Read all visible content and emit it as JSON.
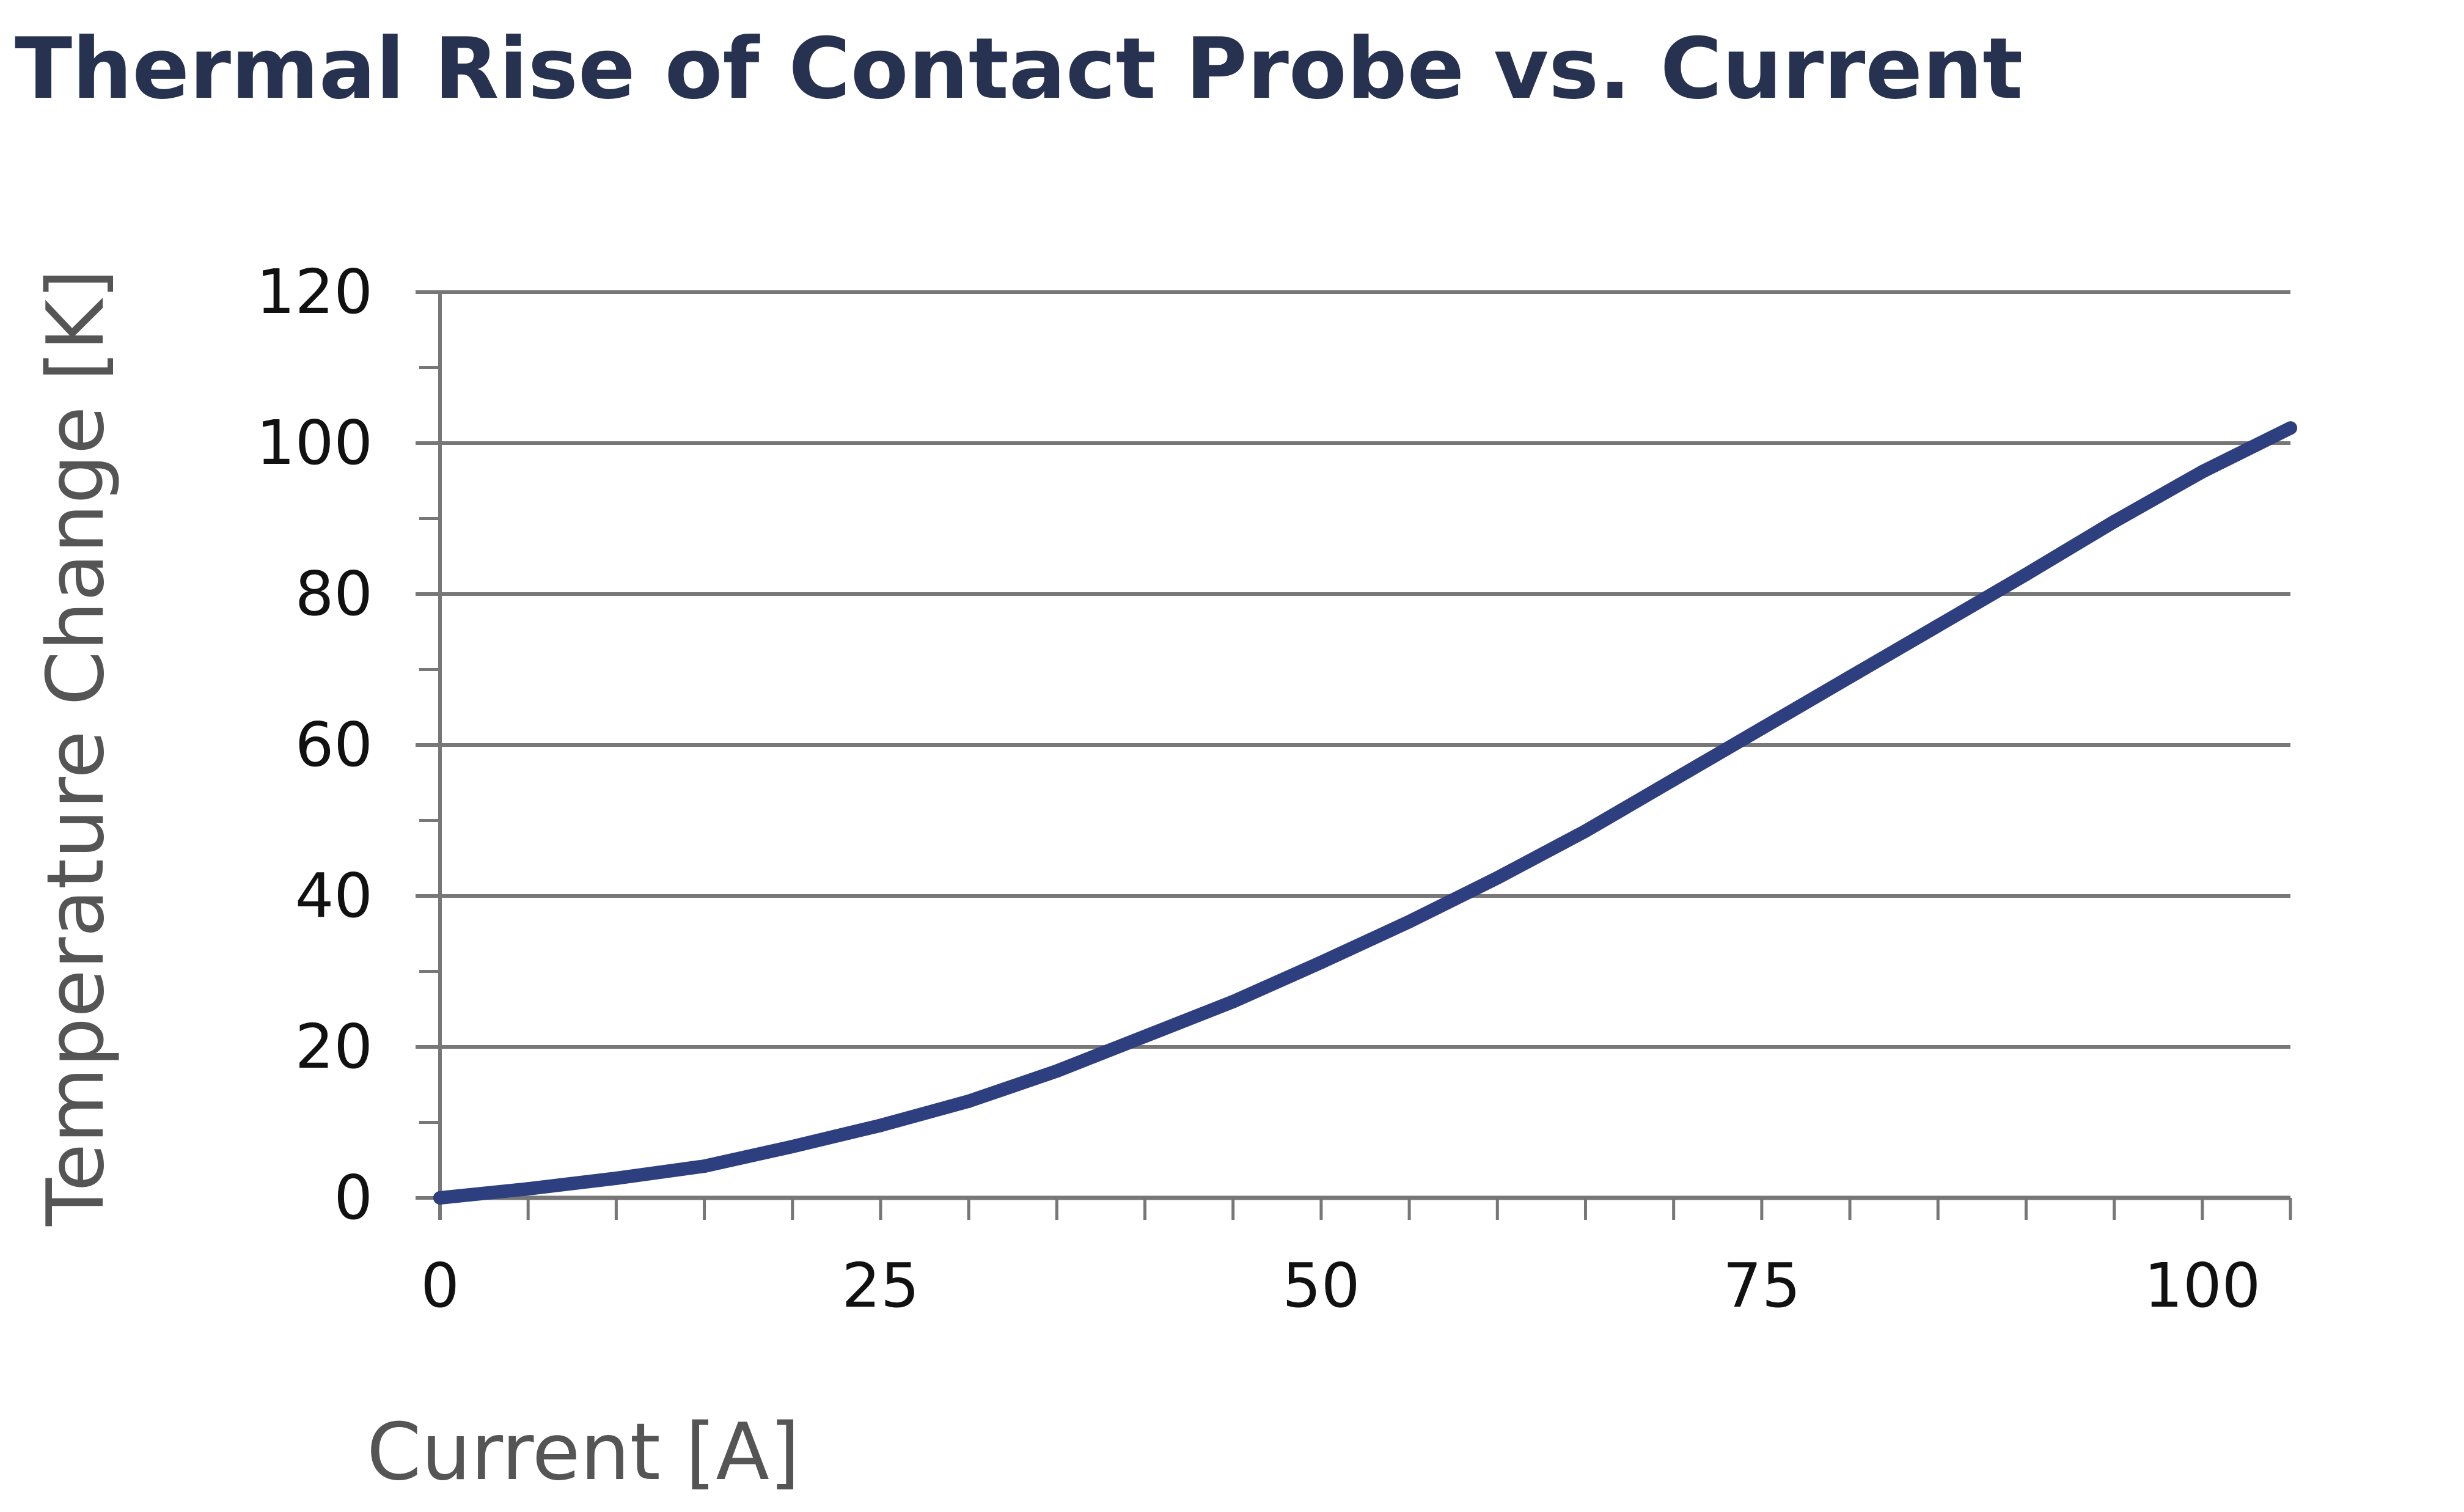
{
  "chart_data": {
    "type": "line",
    "title": "Thermal Rise of Contact Probe vs. Current",
    "xlabel": "Current [A]",
    "ylabel": "Temperature Change [K]",
    "xlim": [
      0,
      105
    ],
    "ylim": [
      0,
      120
    ],
    "x_ticks": [
      "0",
      "25",
      "50",
      "75",
      "100"
    ],
    "y_ticks": [
      "0",
      "20",
      "40",
      "60",
      "80",
      "100",
      "120"
    ],
    "grid": true,
    "series": [
      {
        "color": "#2e3f7f",
        "x": [
          0,
          5,
          10,
          15,
          20,
          25,
          30,
          35,
          40,
          45,
          50,
          55,
          60,
          65,
          70,
          75,
          80,
          85,
          90,
          95,
          100,
          105
        ],
        "y": [
          0,
          1.2,
          2.6,
          4.2,
          6.8,
          9.6,
          12.8,
          16.8,
          21.4,
          26.0,
          31.2,
          36.6,
          42.4,
          48.6,
          55.4,
          62.2,
          69.0,
          75.8,
          82.6,
          89.6,
          96.2,
          102.0
        ]
      }
    ]
  }
}
